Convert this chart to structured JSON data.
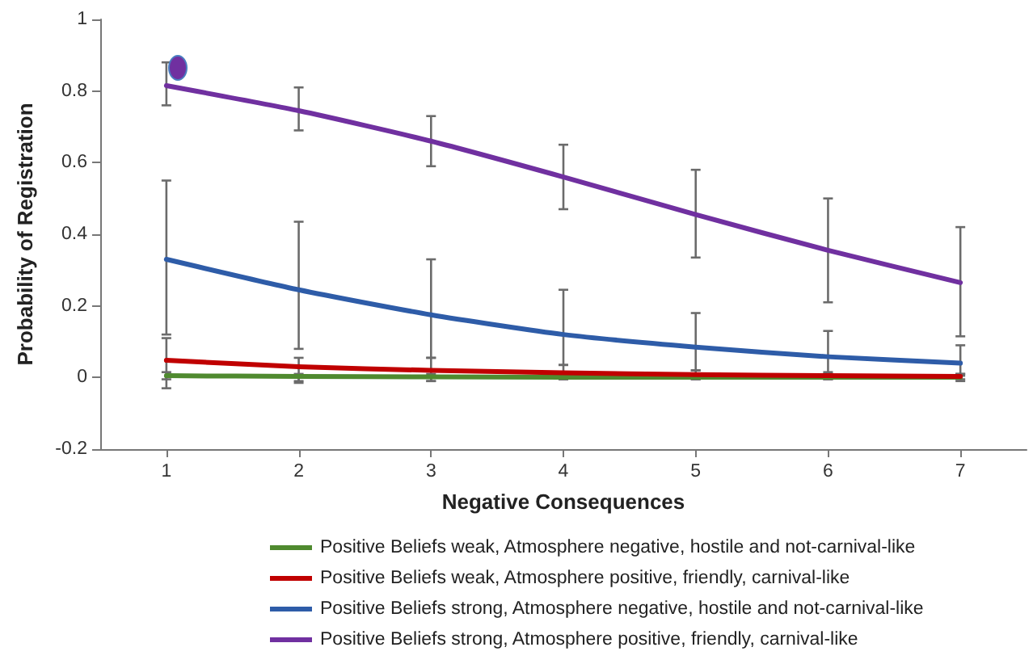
{
  "chart_data": {
    "type": "line",
    "xlabel": "Negative Consequences",
    "ylabel": "Probability of Registration",
    "categories": [
      "1",
      "2",
      "3",
      "4",
      "5",
      "6",
      "7"
    ],
    "series": [
      {
        "name": "Positive Beliefs weak, Atmosphere negative, hostile and not-carnival-like",
        "color": "#4f8a2f",
        "values": [
          0.005,
          0.003,
          0.002,
          0.001,
          0.001,
          0.001,
          0.001
        ],
        "errors": [
          [
            -0.005,
            0.015
          ],
          [
            -0.01,
            0.01
          ],
          [
            -0.01,
            0.01
          ],
          [
            -0.005,
            0.005
          ],
          [
            -0.005,
            0.005
          ],
          [
            -0.005,
            0.005
          ],
          [
            -0.005,
            0.005
          ]
        ]
      },
      {
        "name": "Positive Beliefs weak, Atmosphere positive, friendly, carnival-like",
        "color": "#c00000",
        "values": [
          0.048,
          0.03,
          0.02,
          0.013,
          0.008,
          0.005,
          0.003
        ],
        "errors": [
          [
            -0.03,
            0.11
          ],
          [
            -0.015,
            0.055
          ],
          [
            -0.01,
            0.055
          ],
          [
            -0.005,
            0.035
          ],
          [
            -0.005,
            0.02
          ],
          [
            -0.005,
            0.015
          ],
          [
            -0.01,
            0.01
          ]
        ]
      },
      {
        "name": "Positive Beliefs strong, Atmosphere negative, hostile and not-carnival-like",
        "color": "#2e5ca8",
        "values": [
          0.33,
          0.245,
          0.175,
          0.12,
          0.085,
          0.058,
          0.04
        ],
        "errors": [
          [
            0.12,
            0.55
          ],
          [
            0.08,
            0.435
          ],
          [
            0.055,
            0.33
          ],
          [
            0.035,
            0.245
          ],
          [
            0.02,
            0.18
          ],
          [
            0.01,
            0.13
          ],
          [
            0.01,
            0.09
          ]
        ]
      },
      {
        "name": "Positive Beliefs strong, Atmosphere positive, friendly, carnival-like",
        "color": "#7030a0",
        "values": [
          0.815,
          0.745,
          0.66,
          0.56,
          0.455,
          0.355,
          0.265
        ],
        "errors": [
          [
            0.76,
            0.88
          ],
          [
            0.69,
            0.81
          ],
          [
            0.59,
            0.73
          ],
          [
            0.47,
            0.65
          ],
          [
            0.335,
            0.58
          ],
          [
            0.21,
            0.5
          ],
          [
            0.115,
            0.42
          ]
        ]
      }
    ],
    "ylim": [
      -0.2,
      1
    ],
    "yticks": [
      -0.2,
      0,
      0.2,
      0.4,
      0.6,
      0.8,
      1
    ],
    "grid": false,
    "legend": "bottom",
    "marker": "none",
    "line_style": "solid"
  }
}
